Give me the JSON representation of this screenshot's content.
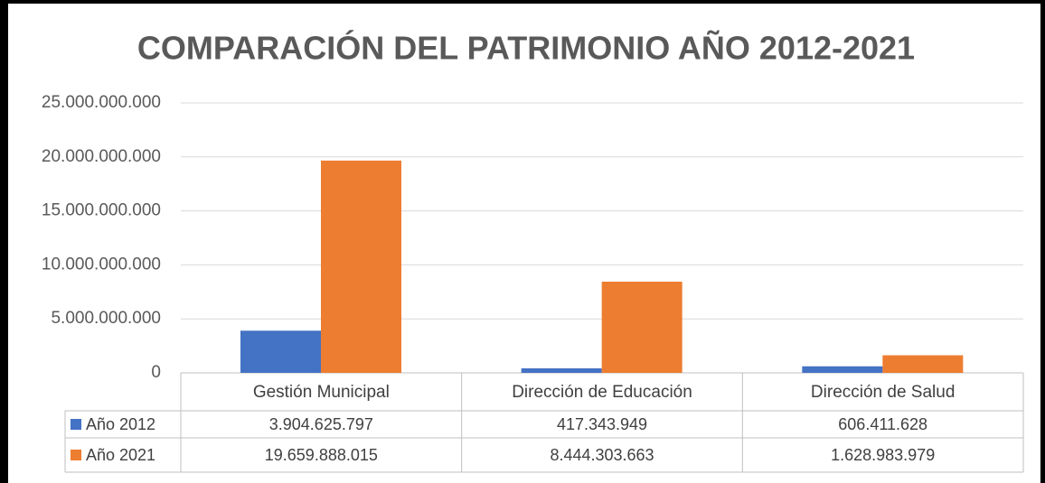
{
  "chart_data": {
    "type": "bar",
    "title": "COMPARACIÓN  DEL PATRIMONIO AÑO 2012-2021",
    "categories": [
      "Gestión Municipal",
      "Dirección de Educación",
      "Dirección de Salud"
    ],
    "series": [
      {
        "name": "Año 2012",
        "color": "#4472c4",
        "values": [
          3904625797,
          417343949,
          606411628
        ],
        "value_labels": [
          "3.904.625.797",
          "417.343.949",
          "606.411.628"
        ]
      },
      {
        "name": "Año 2021",
        "color": "#ed7d31",
        "values": [
          19659888015,
          8444303663,
          1628983979
        ],
        "value_labels": [
          "19.659.888.015",
          "8.444.303.663",
          "1.628.983.979"
        ]
      }
    ],
    "ylim": [
      0,
      25000000000
    ],
    "yticks": [
      0,
      {
        "value": 5000000000,
        "label": "5.000.000.000"
      },
      {
        "value": 10000000000,
        "label": "10.000.000.000"
      },
      {
        "value": 15000000000,
        "label": "15.000.000.000"
      },
      {
        "value": 20000000000,
        "label": "20.000.000.000"
      },
      {
        "value": 25000000000,
        "label": "25.000.000.000"
      }
    ],
    "grid": true
  }
}
